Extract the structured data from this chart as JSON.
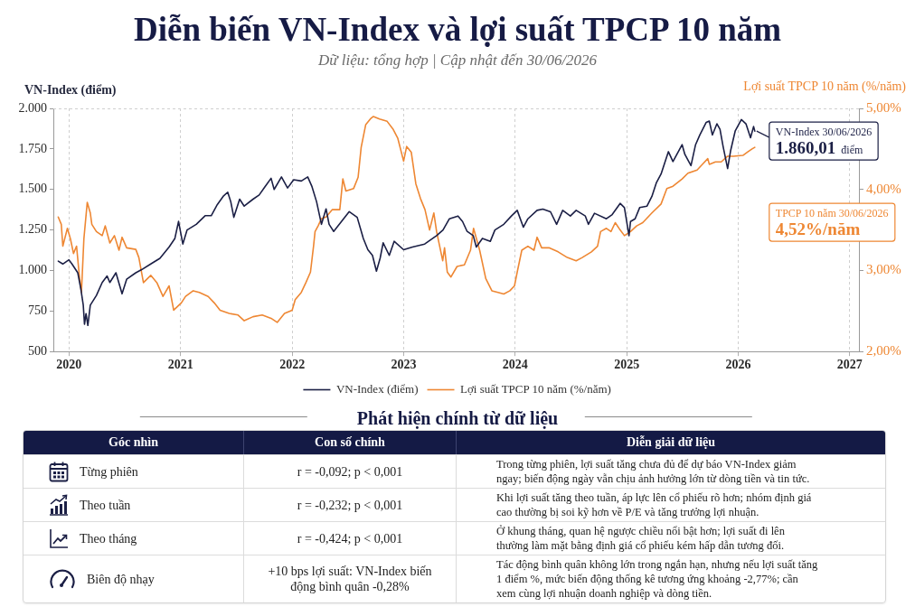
{
  "chart_data": [
    {
      "type": "line",
      "title": "Diễn biến VN-Index và lợi suất TPCP 10 năm",
      "subtitle": "Dữ liệu: tổng hợp | Cập nhật đến 30/06/2026",
      "ylabel": "VN-Index (điểm)",
      "y2label": "Lợi suất TPCP 10 năm (%/năm)",
      "xlim": [
        "2019-11-11",
        "2027-01-31"
      ],
      "xticks": [
        "2020",
        "2021",
        "2022",
        "2023",
        "2024",
        "2025",
        "2026",
        "2027"
      ],
      "ylim": [
        500,
        2000
      ],
      "yticks": [
        500,
        750,
        {
          "value": 1000,
          "label": "1.000"
        },
        {
          "value": 1250,
          "label": "1.250"
        },
        {
          "value": 1500,
          "label": "1.500"
        },
        {
          "value": 1750,
          "label": "1.750"
        },
        {
          "value": 2000,
          "label": "2.000"
        }
      ],
      "y2lim": [
        2,
        5
      ],
      "y2ticks": [
        {
          "value": 2,
          "label": "2,00%"
        },
        {
          "value": 3,
          "label": "3,00%"
        },
        {
          "value": 4,
          "label": "4,00%"
        },
        {
          "value": 5,
          "label": "5,00%"
        }
      ],
      "grid": "x",
      "legend": "bottom",
      "annotations": [
        {
          "text": "VN-Index 30/06/2026\n1.860,01 điểm",
          "x": "2026-02-24",
          "y": 1860.01
        },
        "TPCP 10 năm 30/06/2026\n4,52%/năm"
      ],
      "series": [
        {
          "name": "VN-Index (điểm)",
          "color": "#1b1f45",
          "x": [
            "2019-11-27",
            "2019-12-12",
            "2020-01-01",
            "2020-01-11",
            "2020-01-30",
            "2020-02-09",
            "2020-02-17",
            "2020-02-21",
            "2020-02-26",
            "2020-03-03",
            "2020-03-11",
            "2020-03-31",
            "2020-04-19",
            "2020-05-05",
            "2020-05-14",
            "2020-06-03",
            "2020-06-23",
            "2020-07-08",
            "2020-08-07",
            "2020-08-26",
            "2020-09-25",
            "2020-10-25",
            "2020-11-24",
            "2020-12-13",
            "2020-12-25",
            "2021-01-08",
            "2021-01-22",
            "2021-02-21",
            "2021-03-22",
            "2021-04-11",
            "2021-05-01",
            "2021-05-20",
            "2021-06-04",
            "2021-06-14",
            "2021-06-24",
            "2021-07-13",
            "2021-07-28",
            "2021-08-26",
            "2021-09-15",
            "2021-10-04",
            "2021-10-24",
            "2021-11-03",
            "2021-11-27",
            "2021-12-17",
            "2022-01-06",
            "2022-01-31",
            "2022-02-21",
            "2022-03-07",
            "2022-03-22",
            "2022-04-07",
            "2022-04-22",
            "2022-05-02",
            "2022-05-17",
            "2022-06-12",
            "2022-07-07",
            "2022-08-02",
            "2022-08-22",
            "2022-09-06",
            "2022-09-21",
            "2022-10-04",
            "2022-10-16",
            "2022-10-26",
            "2022-11-15",
            "2022-12-01",
            "2023-01-01",
            "2023-01-30",
            "2023-03-11",
            "2023-04-19",
            "2023-05-10",
            "2023-05-31",
            "2023-06-28",
            "2023-07-13",
            "2023-07-28",
            "2023-08-17",
            "2023-08-27",
            "2023-09-16",
            "2023-10-12",
            "2023-10-27",
            "2023-11-25",
            "2023-12-20",
            "2024-01-08",
            "2024-01-28",
            "2024-02-12",
            "2024-03-13",
            "2024-04-01",
            "2024-04-26",
            "2024-05-16",
            "2024-06-05",
            "2024-06-30",
            "2024-07-19",
            "2024-08-18",
            "2024-08-28",
            "2024-09-17",
            "2024-10-26",
            "2024-11-14",
            "2024-12-10",
            "2024-12-24",
            "2025-01-08",
            "2025-01-13",
            "2025-01-28",
            "2025-02-12",
            "2025-03-08",
            "2025-03-24",
            "2025-04-08",
            "2025-04-23",
            "2025-05-08",
            "2025-05-17",
            "2025-06-01",
            "2025-07-01",
            "2025-07-10",
            "2025-07-30",
            "2025-08-14",
            "2025-08-28",
            "2025-09-18",
            "2025-09-28",
            "2025-10-08",
            "2025-10-23",
            "2025-11-02",
            "2025-11-12",
            "2025-11-27",
            "2025-12-07",
            "2025-12-22",
            "2026-01-11",
            "2026-01-26",
            "2026-02-10",
            "2026-02-20",
            "2026-02-24"
          ],
          "values": [
            1058,
            1040,
            1066,
            1040,
            986,
            886,
            786,
            668,
            734,
            661,
            786,
            846,
            926,
            966,
            926,
            986,
            856,
            946,
            986,
            1005,
            1040,
            1075,
            1145,
            1198,
            1303,
            1163,
            1250,
            1285,
            1338,
            1338,
            1407,
            1457,
            1483,
            1424,
            1328,
            1440,
            1397,
            1440,
            1466,
            1517,
            1569,
            1500,
            1577,
            1509,
            1560,
            1552,
            1577,
            1517,
            1424,
            1285,
            1380,
            1285,
            1241,
            1303,
            1363,
            1328,
            1198,
            1128,
            1093,
            996,
            1075,
            1171,
            1093,
            1180,
            1128,
            1145,
            1163,
            1215,
            1250,
            1319,
            1336,
            1302,
            1241,
            1215,
            1145,
            1198,
            1180,
            1250,
            1285,
            1336,
            1371,
            1267,
            1319,
            1371,
            1379,
            1362,
            1285,
            1371,
            1336,
            1371,
            1336,
            1285,
            1353,
            1319,
            1345,
            1414,
            1388,
            1215,
            1302,
            1319,
            1388,
            1397,
            1457,
            1543,
            1595,
            1681,
            1733,
            1672,
            1776,
            1716,
            1647,
            1776,
            1836,
            1914,
            1922,
            1836,
            1905,
            1871,
            1767,
            1629,
            1741,
            1862,
            1931,
            1905,
            1819,
            1888,
            1860.01
          ]
        },
        {
          "name": "Lợi suất TPCP 10 năm (%/năm)",
          "color": "#ee8733",
          "axis": "y2",
          "x": [
            "2019-11-27",
            "2019-12-07",
            "2019-12-12",
            "2019-12-27",
            "2020-01-06",
            "2020-01-16",
            "2020-01-26",
            "2020-02-04",
            "2020-02-11",
            "2020-02-19",
            "2020-03-01",
            "2020-03-11",
            "2020-03-16",
            "2020-03-31",
            "2020-04-19",
            "2020-04-29",
            "2020-05-14",
            "2020-05-29",
            "2020-06-13",
            "2020-06-23",
            "2020-07-08",
            "2020-08-07",
            "2020-08-17",
            "2020-09-01",
            "2020-09-25",
            "2020-10-15",
            "2020-11-04",
            "2020-11-24",
            "2020-12-09",
            "2021-01-03",
            "2021-01-17",
            "2021-02-11",
            "2021-03-03",
            "2021-04-01",
            "2021-04-21",
            "2021-05-10",
            "2021-06-09",
            "2021-07-08",
            "2021-07-28",
            "2021-08-26",
            "2021-09-25",
            "2021-10-24",
            "2021-11-13",
            "2021-12-07",
            "2022-01-01",
            "2022-01-11",
            "2022-01-31",
            "2022-02-15",
            "2022-03-02",
            "2022-03-12",
            "2022-03-17",
            "2022-03-27",
            "2022-04-07",
            "2022-04-22",
            "2022-05-12",
            "2022-06-06",
            "2022-06-16",
            "2022-06-26",
            "2022-07-21",
            "2022-08-05",
            "2022-08-15",
            "2022-08-30",
            "2022-09-14",
            "2022-09-24",
            "2022-10-14",
            "2022-11-08",
            "2022-11-28",
            "2022-12-13",
            "2023-01-01",
            "2023-01-11",
            "2023-01-26",
            "2023-02-10",
            "2023-02-25",
            "2023-03-12",
            "2023-03-27",
            "2023-04-10",
            "2023-04-19",
            "2023-05-09",
            "2023-05-15",
            "2023-05-24",
            "2023-06-05",
            "2023-06-25",
            "2023-07-19",
            "2023-08-08",
            "2023-08-18",
            "2023-09-07",
            "2023-09-27",
            "2023-10-17",
            "2023-11-06",
            "2023-11-25",
            "2023-12-15",
            "2023-12-30",
            "2024-01-08",
            "2024-01-23",
            "2024-02-12",
            "2024-03-03",
            "2024-03-13",
            "2024-03-28",
            "2024-04-21",
            "2024-05-21",
            "2024-06-20",
            "2024-07-19",
            "2024-08-08",
            "2024-09-07",
            "2024-09-27",
            "2024-10-07",
            "2024-10-26",
            "2024-11-10",
            "2024-11-24",
            "2024-12-10",
            "2024-12-24",
            "2025-01-13",
            "2025-02-02",
            "2025-02-22",
            "2025-03-24",
            "2025-04-23",
            "2025-05-12",
            "2025-06-01",
            "2025-07-01",
            "2025-07-20",
            "2025-08-19",
            "2025-09-08",
            "2025-09-23",
            "2025-09-28",
            "2025-10-18",
            "2025-11-06",
            "2025-11-27",
            "2025-12-16",
            "2026-01-16",
            "2026-01-31",
            "2026-02-15",
            "2026-02-24"
          ],
          "values": [
            3.66,
            3.57,
            3.3,
            3.52,
            3.39,
            3.21,
            3.3,
            2.94,
            2.73,
            3.39,
            3.84,
            3.71,
            3.57,
            3.48,
            3.43,
            3.55,
            3.34,
            3.43,
            3.25,
            3.41,
            3.28,
            3.26,
            3.16,
            2.85,
            2.94,
            2.85,
            2.68,
            2.81,
            2.51,
            2.6,
            2.68,
            2.75,
            2.73,
            2.68,
            2.6,
            2.51,
            2.47,
            2.45,
            2.38,
            2.43,
            2.45,
            2.41,
            2.36,
            2.47,
            2.51,
            2.64,
            2.73,
            2.85,
            2.98,
            3.3,
            3.48,
            3.55,
            3.64,
            3.66,
            3.75,
            3.75,
            4.13,
            3.98,
            4.01,
            4.15,
            4.52,
            4.8,
            4.87,
            4.9,
            4.87,
            4.84,
            4.74,
            4.63,
            4.35,
            4.53,
            4.46,
            4.07,
            3.89,
            3.75,
            3.5,
            3.71,
            3.48,
            3.12,
            3.28,
            2.98,
            2.92,
            3.05,
            3.07,
            3.25,
            3.52,
            3.25,
            2.9,
            2.75,
            2.73,
            2.71,
            2.75,
            2.81,
            2.98,
            3.25,
            3.3,
            3.25,
            3.41,
            3.28,
            3.28,
            3.23,
            3.16,
            3.12,
            3.16,
            3.23,
            3.3,
            3.48,
            3.52,
            3.48,
            3.59,
            3.5,
            3.43,
            3.48,
            3.55,
            3.59,
            3.71,
            3.82,
            4.01,
            4.04,
            4.13,
            4.2,
            4.24,
            4.32,
            4.38,
            4.31,
            4.34,
            4.34,
            4.41,
            4.41,
            4.42,
            4.46,
            4.5,
            4.52
          ]
        }
      ]
    },
    {
      "type": "other",
      "title": "Phát hiện chính từ dữ liệu",
      "categories": [
        "Góc nhìn",
        "Con số chính",
        "Diễn giải dữ liệu"
      ],
      "y_categories": [
        "Từng phiên",
        "Theo tuần",
        "Theo tháng",
        "Biên độ nhạy"
      ],
      "cell_labels": [
        [
          "r = -0,092; p < 0,001",
          "Trong từng phiên, lợi suất tăng chưa đủ để dự báo VN-Index giảm ngay; biến động ngày vẫn chịu ảnh hưởng lớn từ dòng tiền và tin tức."
        ],
        [
          "r = -0,232; p < 0,001",
          "Khi lợi suất tăng theo tuần, áp lực lên cổ phiếu rõ hơn; nhóm định giá cao thường bị soi kỹ hơn về P/E và tăng trưởng lợi nhuận."
        ],
        [
          "r = -0,424; p < 0,001",
          "Ở khung tháng, quan hệ ngược chiều nổi bật hơn; lợi suất đi lên thường làm mặt bằng định giá cổ phiếu kém hấp dẫn tương đối."
        ],
        [
          "+10 bps lợi suất: VN-Index biến động bình quân -0,28%",
          "Tác động bình quân không lớn trong ngắn hạn, nhưng nếu lợi suất tăng 1 điểm %, mức biến động thống kê tương ứng khoảng -2,77%; cần xem cùng lợi nhuận doanh nghiệp và dòng tiền."
        ]
      ]
    }
  ]
}
